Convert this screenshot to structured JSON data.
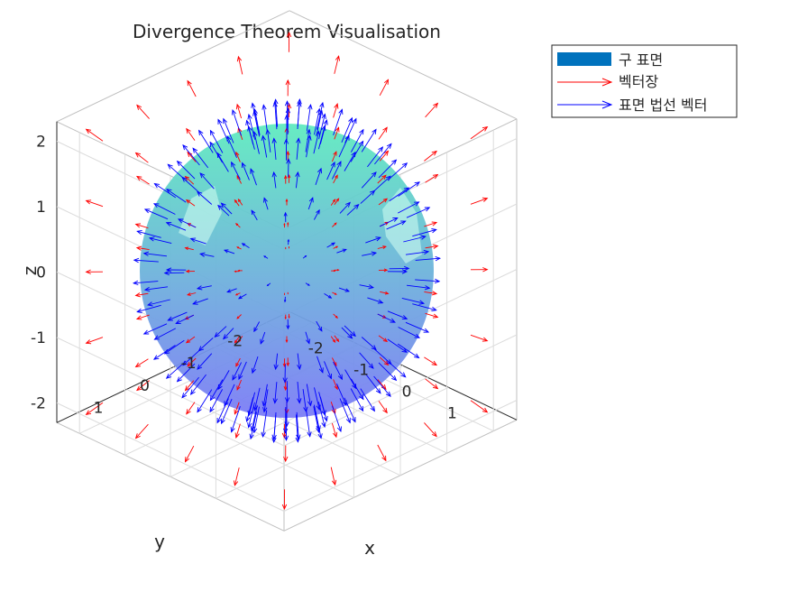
{
  "chart_data": {
    "type": "3d-quiver-surface",
    "title": "Divergence Theorem Visualisation",
    "xlabel": "x",
    "ylabel": "y",
    "zlabel": "z",
    "xlim": [
      -2.5,
      2.5
    ],
    "ylim": [
      -2.5,
      2.5
    ],
    "zlim": [
      -2.3,
      2.3
    ],
    "x_ticks": [
      -2,
      -1,
      0,
      1
    ],
    "y_ticks": [
      -2,
      -1,
      0,
      1
    ],
    "z_ticks": [
      -2,
      -1,
      0,
      1,
      2
    ],
    "grid": true,
    "sphere": {
      "center": [
        0,
        0,
        0
      ],
      "radius": 2,
      "colormap": "winter",
      "opacity": 0.6
    },
    "vector_field": {
      "expression": "F = (x, y, z)",
      "grid_range": [
        -2,
        2
      ]
    },
    "normal_vectors": {
      "on_sphere": true,
      "direction": "outward"
    },
    "legend": {
      "placement": "top-right",
      "entries": [
        {
          "label": "구 표면",
          "kind": "patch",
          "color": "#0072BD"
        },
        {
          "label": "벡터장",
          "kind": "arrow",
          "color": "#FF0000"
        },
        {
          "label": "표면 법선 벡터",
          "kind": "arrow",
          "color": "#0000FF"
        }
      ]
    },
    "colors": {
      "sphere_top": "#5FEBBF",
      "sphere_bottom": "#7C7CF6",
      "field_arrows": "#FF0000",
      "normal_arrows": "#0000FF",
      "grid": "#DCDCDC",
      "box": "#BFBFBF"
    }
  }
}
